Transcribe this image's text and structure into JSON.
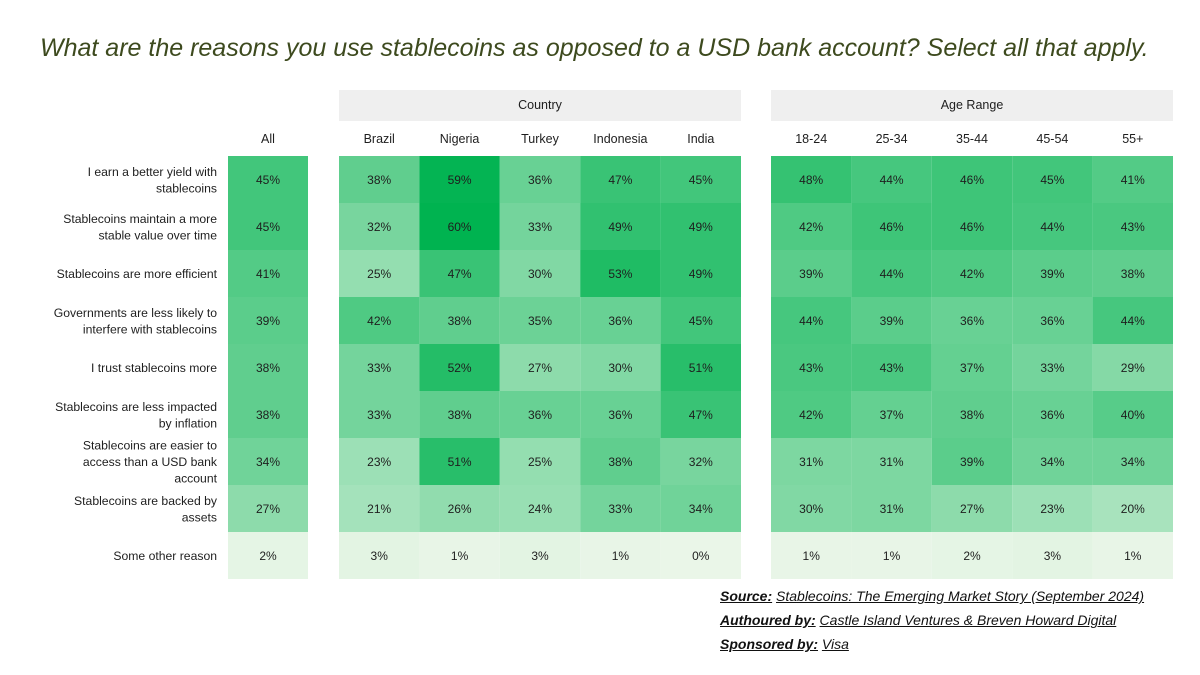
{
  "chart_data": {
    "type": "heatmap",
    "title": "What are the reasons you use stablecoins as opposed to a USD bank account? Select all that apply.",
    "group_headers": {
      "country": "Country",
      "age": "Age Range"
    },
    "all_label": "All",
    "countries": [
      "Brazil",
      "Nigeria",
      "Turkey",
      "Indonesia",
      "India"
    ],
    "ages": [
      "18-24",
      "25-34",
      "35-44",
      "45-54",
      "55+"
    ],
    "rows": [
      {
        "label_lines": [
          "I earn a better yield with",
          "stablecoins"
        ],
        "all": 45,
        "country": [
          38,
          59,
          36,
          47,
          45
        ],
        "age": [
          48,
          44,
          46,
          45,
          41
        ]
      },
      {
        "label_lines": [
          "Stablecoins maintain a more",
          "stable value over time"
        ],
        "all": 45,
        "country": [
          32,
          60,
          33,
          49,
          49
        ],
        "age": [
          42,
          46,
          46,
          44,
          43
        ]
      },
      {
        "label_lines": [
          "Stablecoins are more efficient"
        ],
        "all": 41,
        "country": [
          25,
          47,
          30,
          53,
          49
        ],
        "age": [
          39,
          44,
          42,
          39,
          38
        ]
      },
      {
        "label_lines": [
          "Governments are less likely to",
          "interfere with stablecoins"
        ],
        "all": 39,
        "country": [
          42,
          38,
          35,
          36,
          45
        ],
        "age": [
          44,
          39,
          36,
          36,
          44
        ]
      },
      {
        "label_lines": [
          "I trust stablecoins more"
        ],
        "all": 38,
        "country": [
          33,
          52,
          27,
          30,
          51
        ],
        "age": [
          43,
          43,
          37,
          33,
          29
        ]
      },
      {
        "label_lines": [
          "Stablecoins are less impacted",
          "by inflation"
        ],
        "all": 38,
        "country": [
          33,
          38,
          36,
          36,
          47
        ],
        "age": [
          42,
          37,
          38,
          36,
          40
        ]
      },
      {
        "label_lines": [
          "Stablecoins are easier to",
          "access than a USD bank",
          "account"
        ],
        "all": 34,
        "country": [
          23,
          51,
          25,
          38,
          32
        ],
        "age": [
          31,
          31,
          39,
          34,
          34
        ]
      },
      {
        "label_lines": [
          "Stablecoins are backed by",
          "assets"
        ],
        "all": 27,
        "country": [
          21,
          26,
          24,
          33,
          34
        ],
        "age": [
          30,
          31,
          27,
          23,
          20
        ]
      },
      {
        "label_lines": [
          "Some other reason"
        ],
        "all": 2,
        "country": [
          3,
          1,
          3,
          1,
          0
        ],
        "age": [
          1,
          1,
          2,
          3,
          1
        ]
      }
    ],
    "value_suffix": "%"
  },
  "source": {
    "source_label": "Source:",
    "source_value": "Stablecoins: The Emerging Market Story (September 2024)",
    "authored_label": "Authoured by:",
    "authored_value": "Castle Island Ventures & Breven Howard Digital",
    "sponsored_label": "Sponsored by:",
    "sponsored_value": "Visa"
  },
  "colors": {
    "title": "#3d4a1e",
    "text": "#1e1e1e",
    "header_bg": "#efefef",
    "scale_low": "#eaf6e8",
    "scale_high": "#00b350"
  }
}
